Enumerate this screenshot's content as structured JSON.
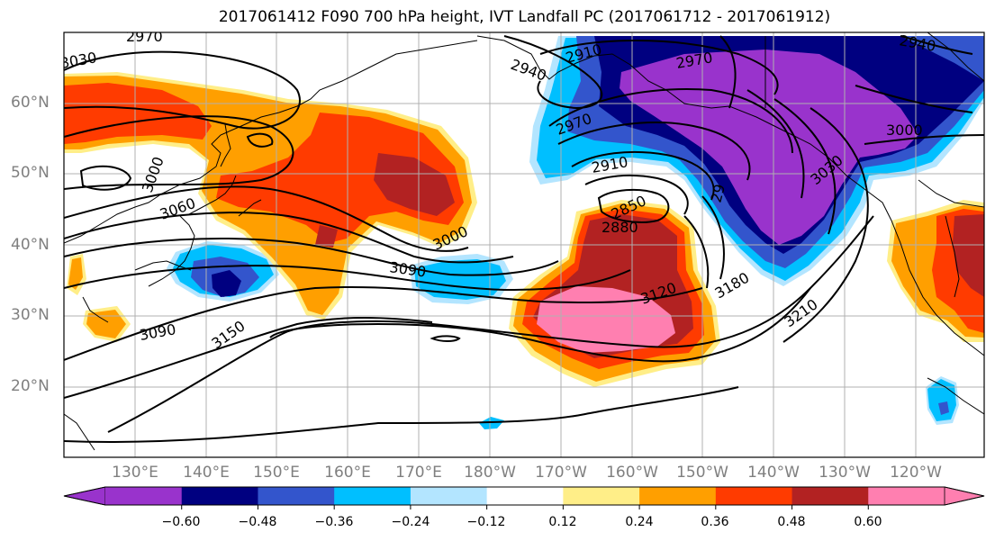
{
  "title": "2017061412 F090 700 hPa height, IVT Landfall PC (2017061712 - 2017061912)",
  "lat_labels": [
    "60°N",
    "50°N",
    "40°N",
    "30°N",
    "20°N"
  ],
  "lon_labels": [
    "130°E",
    "140°E",
    "150°E",
    "160°E",
    "170°E",
    "180°W",
    "170°W",
    "160°W",
    "150°W",
    "140°W",
    "130°W",
    "120°W"
  ],
  "contour_labels": [
    "2970",
    "3030",
    "2940",
    "2910",
    "2970",
    "2940",
    "3000",
    "2970",
    "3000",
    "3060",
    "2910",
    "3030",
    "2850",
    "2880",
    "3000",
    "3090",
    "3120",
    "3180",
    "3090",
    "3150",
    "3210",
    "29"
  ],
  "colorbar": {
    "colors": [
      "#9933cc",
      "#000080",
      "#3355cc",
      "#00bfff",
      "#b3e5ff",
      "#ffffff",
      "#ffee88",
      "#ff9f00",
      "#ff3b00",
      "#b22222",
      "#ff7fb0"
    ],
    "ticks": [
      "−0.60",
      "−0.48",
      "−0.36",
      "−0.24",
      "−0.12",
      "0.12",
      "0.24",
      "0.36",
      "0.48",
      "0.60"
    ]
  }
}
